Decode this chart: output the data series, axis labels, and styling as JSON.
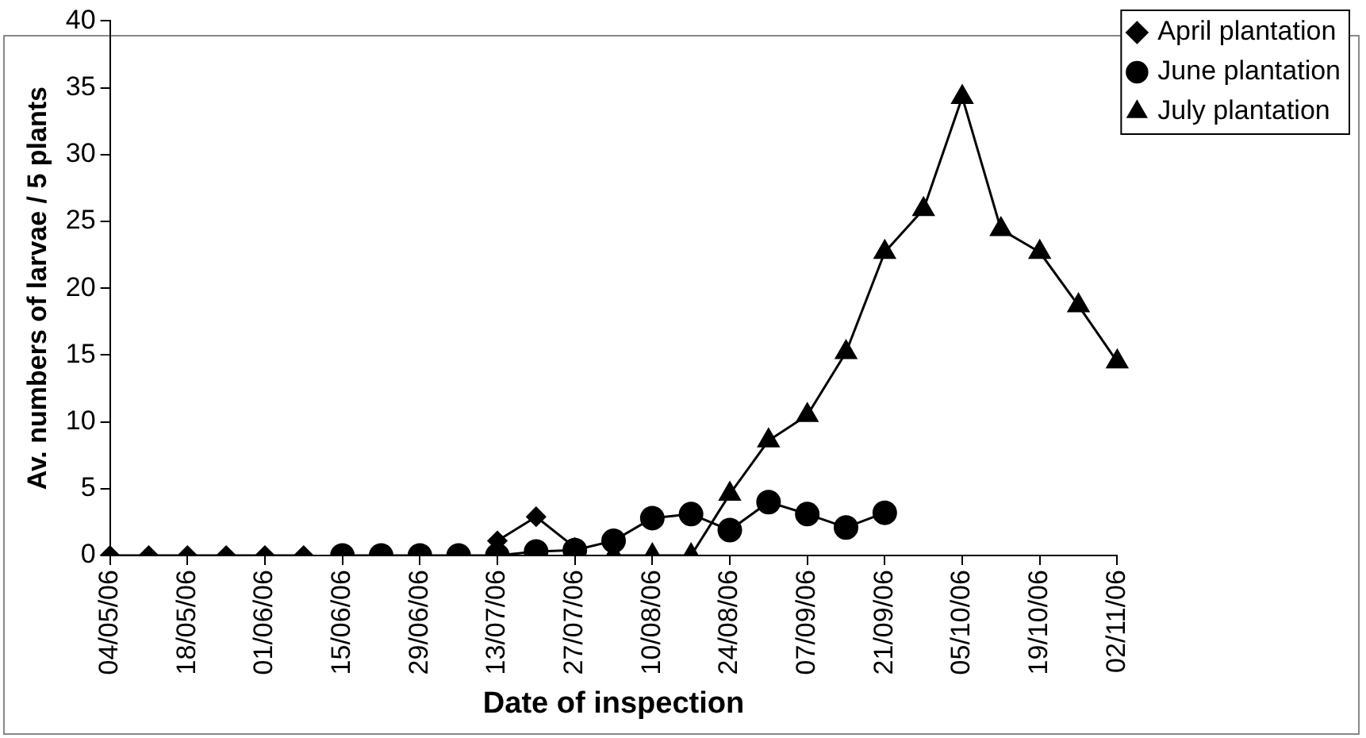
{
  "chart_data": {
    "type": "line",
    "xlabel": "Date of inspection",
    "ylabel": "Av. numbers of larvae / 5 plants",
    "categories": [
      "04/05/06",
      null,
      "18/05/06",
      null,
      "01/06/06",
      null,
      "15/06/06",
      null,
      "29/06/06",
      null,
      "13/07/06",
      null,
      "27/07/06",
      null,
      "10/08/06",
      null,
      "24/08/06",
      null,
      "07/09/06",
      null,
      "21/09/06",
      null,
      "05/10/06",
      null,
      "19/10/06",
      null,
      "02/11/06"
    ],
    "series": [
      {
        "name": "April plantation",
        "color": "#000000",
        "marker": "diamond",
        "values": [
          0,
          0,
          0,
          0,
          0,
          0,
          null,
          null,
          null,
          null,
          1.1,
          2.9,
          0.6,
          null,
          null,
          null,
          null,
          null,
          null,
          null,
          null,
          null,
          null,
          null,
          null,
          null,
          null
        ]
      },
      {
        "name": "June plantation",
        "color": "#000000",
        "marker": "circle",
        "values": [
          null,
          null,
          null,
          null,
          null,
          null,
          0,
          0,
          0,
          0,
          0,
          0.3,
          0.4,
          1.1,
          2.8,
          3.1,
          1.9,
          4,
          3.1,
          2.1,
          3.2,
          null,
          null,
          null,
          null,
          null,
          null
        ]
      },
      {
        "name": "July plantation",
        "color": "#000000",
        "marker": "triangle",
        "values": [
          null,
          null,
          null,
          null,
          null,
          null,
          null,
          null,
          null,
          null,
          null,
          null,
          null,
          0,
          0,
          0,
          4.6,
          8.6,
          10.5,
          15.2,
          22.7,
          25.9,
          34.3,
          24.4,
          22.7,
          18.7,
          14.5
        ]
      }
    ],
    "ylim": [
      0,
      40
    ],
    "yticks": [
      0,
      5,
      10,
      15,
      20,
      25,
      30,
      35,
      40
    ],
    "grid": false,
    "legend": "top right",
    "line_style": "solid"
  }
}
